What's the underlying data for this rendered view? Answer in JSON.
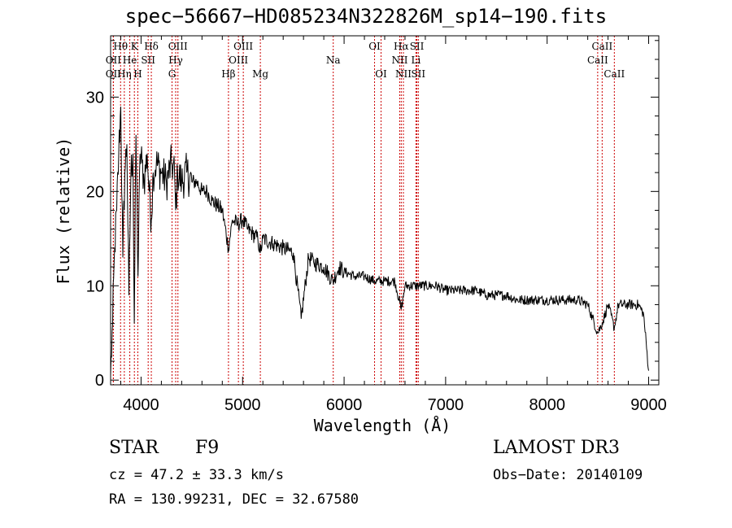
{
  "chart_data": {
    "type": "line",
    "title": "spec−56667−HD085234N322826M_sp14−190.fits",
    "xlabel": "Wavelength (Å)",
    "ylabel": "Flux (relative)",
    "xlim": [
      3700,
      9100
    ],
    "ylim": [
      -0.5,
      36.5
    ],
    "xticks": [
      4000,
      5000,
      6000,
      7000,
      8000,
      9000
    ],
    "yticks": [
      0,
      10,
      20,
      30
    ],
    "grid": false,
    "series": [
      {
        "name": "spectrum",
        "x": [
          3700,
          3720,
          3740,
          3760,
          3780,
          3800,
          3820,
          3840,
          3860,
          3880,
          3900,
          3920,
          3933,
          3950,
          3970,
          3990,
          4010,
          4030,
          4060,
          4080,
          4101,
          4120,
          4150,
          4200,
          4250,
          4300,
          4330,
          4341,
          4360,
          4400,
          4450,
          4500,
          4550,
          4600,
          4650,
          4700,
          4750,
          4800,
          4861,
          4900,
          4950,
          5000,
          5050,
          5100,
          5150,
          5175,
          5200,
          5300,
          5400,
          5500,
          5577,
          5650,
          5700,
          5800,
          5890,
          5950,
          6000,
          6100,
          6200,
          6300,
          6400,
          6500,
          6563,
          6600,
          6700,
          6800,
          6900,
          7000,
          7100,
          7200,
          7300,
          7400,
          7500,
          7600,
          7700,
          7800,
          7900,
          8000,
          8100,
          8200,
          8300,
          8400,
          8498,
          8542,
          8600,
          8662,
          8700,
          8800,
          8900,
          8950,
          9000
        ],
        "y": [
          0.5,
          6,
          14,
          18,
          24,
          29,
          13,
          22,
          25,
          9,
          22,
          24,
          6,
          26,
          11,
          24,
          23,
          21,
          24,
          20,
          17,
          22,
          23,
          22,
          21,
          23,
          22,
          18,
          22,
          21,
          22,
          21,
          21,
          20,
          20,
          19,
          18.5,
          18,
          14,
          17,
          16.5,
          17,
          16,
          15.5,
          15,
          13.5,
          15,
          14.5,
          14,
          13.5,
          6.5,
          13,
          12.5,
          12,
          10.5,
          12,
          11.5,
          11,
          11,
          10.5,
          10.5,
          10.5,
          7.5,
          10,
          10,
          10,
          10,
          9.5,
          9.5,
          9.5,
          9.5,
          9,
          9,
          9,
          8.5,
          8.5,
          8.5,
          8.5,
          8.5,
          8.5,
          8.5,
          8,
          5,
          6,
          8,
          5.5,
          8,
          8,
          8,
          7,
          1
        ]
      }
    ],
    "line_markers": [
      {
        "label": "Hθ",
        "x": 3798,
        "row": 1
      },
      {
        "label": "OII",
        "x": 3727,
        "row": 2
      },
      {
        "label": "OII",
        "x": 3727,
        "row": 3
      },
      {
        "label": "Hη",
        "x": 3835,
        "row": 3
      },
      {
        "label": "He",
        "x": 3889,
        "row": 2
      },
      {
        "label": "K",
        "x": 3934,
        "row": 1
      },
      {
        "label": "H",
        "x": 3968,
        "row": 3
      },
      {
        "label": "SII",
        "x": 4070,
        "row": 2
      },
      {
        "label": "Hδ",
        "x": 4101,
        "row": 1
      },
      {
        "label": "OIII",
        "x": 4363,
        "row": 1
      },
      {
        "label": "Hγ",
        "x": 4341,
        "row": 2
      },
      {
        "label": "G",
        "x": 4305,
        "row": 3
      },
      {
        "label": "Hβ",
        "x": 4861,
        "row": 3
      },
      {
        "label": "OIII",
        "x": 5007,
        "row": 1
      },
      {
        "label": "OIII",
        "x": 4959,
        "row": 2
      },
      {
        "label": "Mg",
        "x": 5175,
        "row": 3
      },
      {
        "label": "Na",
        "x": 5893,
        "row": 2
      },
      {
        "label": "OI",
        "x": 6300,
        "row": 1
      },
      {
        "label": "OI",
        "x": 6364,
        "row": 3
      },
      {
        "label": "Hα",
        "x": 6563,
        "row": 1
      },
      {
        "label": "NII",
        "x": 6548,
        "row": 2
      },
      {
        "label": "NII",
        "x": 6584,
        "row": 3
      },
      {
        "label": "SII",
        "x": 6717,
        "row": 1
      },
      {
        "label": "Li",
        "x": 6708,
        "row": 2
      },
      {
        "label": "SII",
        "x": 6731,
        "row": 3
      },
      {
        "label": "CaII",
        "x": 8542,
        "row": 1
      },
      {
        "label": "CaII",
        "x": 8498,
        "row": 2
      },
      {
        "label": "CaII",
        "x": 8662,
        "row": 3
      }
    ]
  },
  "info": {
    "class_label": "STAR",
    "subclass": "F9",
    "survey": "LAMOST DR3",
    "cz": "cz = 47.2 ± 33.3 km/s",
    "obs_date": "Obs−Date: 20140109",
    "coords": "RA = 130.99231, DEC =  32.67580"
  },
  "colors": {
    "line": "#000000",
    "marker": "#cc0000",
    "axes": "#000000"
  }
}
